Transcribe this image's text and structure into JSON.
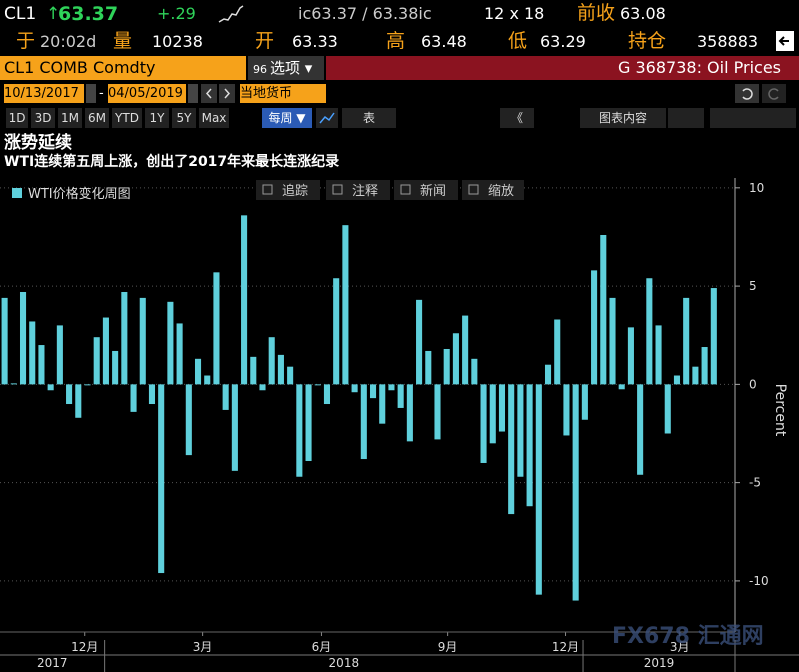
{
  "header": {
    "ticker": "CL1",
    "arrow": "↑",
    "last": "63.37",
    "change": "+.29",
    "bid_ask": "ic63.37 / 63.38ic",
    "size": "12 x 18",
    "prev_label": "前收",
    "prev": "63.08",
    "time_label": "于",
    "time": "20:02d",
    "vol_label": "量",
    "vol": "10238",
    "open_label": "开",
    "open": "63.33",
    "high_label": "高",
    "high": "63.48",
    "low_label": "低",
    "low": "63.29",
    "oi_label": "持仓",
    "oi": "358883",
    "security": "CL1 COMB Comdty",
    "options_num": "96",
    "options": "选项 ▾",
    "page": "G 368738: Oil Prices",
    "start_date": "10/13/2017",
    "dash": "-",
    "end_date": "04/05/2019",
    "currency": "当地货币",
    "periods": [
      "1D",
      "3D",
      "1M",
      "6M",
      "YTD",
      "1Y",
      "5Y",
      "Max"
    ],
    "frequency": "每周 ▼",
    "table": "表",
    "collapse": "《",
    "chart_content": "图表内容"
  },
  "chart_tools": [
    "追踪",
    "注释",
    "新闻",
    "缩放"
  ],
  "watermark": "FX678 汇通网",
  "chart_data": {
    "type": "bar",
    "title": "涨势延续",
    "subtitle": "WTI连续第五周上涨，创出了2017年来最长连涨纪录",
    "y_label": "Percent",
    "legend": "top-left",
    "grid": true,
    "categories": [
      null,
      null,
      null,
      null,
      null,
      null,
      null,
      null,
      null,
      null,
      null,
      null,
      null,
      null,
      null,
      null,
      null,
      null,
      null,
      null,
      null,
      null,
      null,
      null,
      null,
      null,
      null,
      null,
      null,
      null,
      null,
      null,
      null,
      null,
      null,
      null,
      null,
      null,
      null,
      null,
      null,
      null,
      null,
      null,
      null,
      null,
      null,
      null,
      null,
      null,
      null,
      null,
      null,
      null,
      null,
      null,
      null,
      null,
      null,
      null,
      null,
      null,
      null,
      null,
      null,
      null,
      null,
      null,
      null,
      null,
      null,
      null,
      null,
      null,
      null,
      null,
      null,
      null
    ],
    "series": [
      {
        "name": "WTI价格变化周图",
        "color": "#5fd0dc",
        "values": [
          4.4,
          0.05,
          4.7,
          3.2,
          2.0,
          -0.3,
          3.0,
          -1.0,
          -1.7,
          -0.05,
          2.4,
          3.4,
          1.7,
          4.7,
          -1.4,
          4.4,
          -1.0,
          -9.6,
          4.2,
          3.1,
          -3.6,
          1.3,
          0.45,
          5.7,
          -1.3,
          -4.4,
          8.6,
          1.4,
          -0.3,
          2.4,
          1.5,
          0.9,
          -4.7,
          -3.9,
          -0.05,
          -1.0,
          5.4,
          8.1,
          -0.4,
          -3.8,
          -0.7,
          -2.0,
          -0.3,
          -1.2,
          -2.9,
          4.3,
          1.7,
          -2.8,
          1.8,
          2.6,
          3.5,
          1.3,
          -4.0,
          -3.0,
          -2.4,
          -6.6,
          -4.7,
          -6.2,
          -10.7,
          1.0,
          3.3,
          -2.6,
          -11.0,
          -1.8,
          5.8,
          7.6,
          4.4,
          -0.25,
          2.9,
          -4.6,
          5.4,
          3.0,
          -2.5,
          0.45,
          4.4,
          0.9,
          1.9,
          4.9
        ]
      }
    ],
    "xlim": [
      -0.5,
      79.3
    ],
    "xticks": [
      {
        "value": 8.7,
        "label": "12月"
      },
      {
        "value": 21.5,
        "label": "3月"
      },
      {
        "value": 34.4,
        "label": "6月"
      },
      {
        "value": 48.1,
        "label": "9月"
      },
      {
        "value": 60.9,
        "label": "12月"
      },
      {
        "value": 73.3,
        "label": "3月"
      }
    ],
    "year_groups": [
      {
        "label": "2017",
        "range": [
          -0.5,
          10.86
        ]
      },
      {
        "label": "2018",
        "range": [
          10.86,
          62.8
        ]
      },
      {
        "label": "2019",
        "range": [
          62.8,
          79.3
        ]
      }
    ],
    "ylim": [
      -12.6,
      10.5
    ],
    "yticks": [
      -10,
      -5,
      0,
      5,
      10
    ]
  }
}
